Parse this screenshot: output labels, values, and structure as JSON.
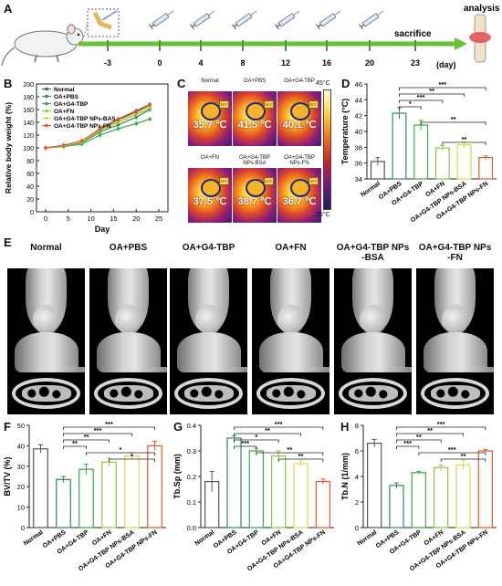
{
  "panels": {
    "A": "A",
    "B": "B",
    "C": "C",
    "D": "D",
    "E": "E",
    "F": "F",
    "G": "G",
    "H": "H"
  },
  "timeline": {
    "ticks": [
      "-3",
      "0",
      "4",
      "8",
      "12",
      "16",
      "20",
      "23"
    ],
    "unit": "(day)",
    "sacrifice": "sacrifice",
    "analysis": "analysis"
  },
  "colors": {
    "Normal": "#555555",
    "OA+PBS": "#2e8b57",
    "OA+G4-TBP": "#3aa84a",
    "OA+FN": "#8ec63f",
    "OA+G4-TBP NPs-BSA": "#d9d94a",
    "OA+G4-TBP NPs-FN": "#e2572d"
  },
  "chart_data": [
    {
      "panel": "B",
      "type": "line",
      "xlabel": "Day",
      "ylabel": "Relative body weight (%)",
      "xlim": [
        -2,
        27
      ],
      "ylim": [
        0,
        200
      ],
      "xticks": [
        "0",
        "5",
        "10",
        "15",
        "20",
        "25"
      ],
      "yticks": [
        "0",
        "20",
        "40",
        "60",
        "80",
        "100",
        "120",
        "140",
        "160",
        "180",
        "200"
      ],
      "x": [
        0,
        4,
        8,
        12,
        16,
        20,
        23
      ],
      "legend": [
        "Normal",
        "OA+PBS",
        "OA+G4-TBP",
        "OA+FN",
        "OA+G4-TBP NPs-BAS",
        "OA+G4-TBP NPs-FN"
      ],
      "series": [
        {
          "name": "Normal",
          "values": [
            100,
            104,
            110,
            130,
            145,
            158,
            168
          ]
        },
        {
          "name": "OA+PBS",
          "values": [
            100,
            103,
            108,
            125,
            136,
            148,
            160
          ]
        },
        {
          "name": "OA+G4-TBP",
          "values": [
            100,
            102,
            106,
            120,
            130,
            138,
            145
          ]
        },
        {
          "name": "OA+FN",
          "values": [
            100,
            103,
            109,
            127,
            140,
            152,
            162
          ]
        },
        {
          "name": "OA+G4-TBP NPs-BAS",
          "values": [
            100,
            104,
            110,
            128,
            142,
            155,
            165
          ]
        },
        {
          "name": "OA+G4-TBP NPs-FN",
          "values": [
            100,
            104,
            111,
            129,
            144,
            156,
            167
          ]
        }
      ]
    },
    {
      "panel": "D",
      "type": "bar",
      "ylabel": "Temperature (°C)",
      "ylim": [
        34,
        46
      ],
      "yticks": [
        "34",
        "36",
        "38",
        "40",
        "42",
        "44",
        "46"
      ],
      "categories": [
        "Normal",
        "OA+PBS",
        "OA+G4-TBP",
        "OA+FN",
        "OA+G4-TBP NPs-BSA",
        "OA+G4-TBP NPs-FN"
      ],
      "values": [
        36.2,
        42.3,
        40.8,
        37.9,
        38.3,
        36.7
      ],
      "errors": [
        0.5,
        0.7,
        0.6,
        0.3,
        0.4,
        0.2
      ],
      "sig": [
        "***",
        "**",
        "***",
        "*",
        "**",
        "**"
      ]
    },
    {
      "panel": "F",
      "type": "bar",
      "ylabel": "BV/TV (%)",
      "ylim": [
        0,
        50
      ],
      "yticks": [
        "0",
        "10",
        "20",
        "30",
        "40",
        "50"
      ],
      "categories": [
        "Normal",
        "OA+PBS",
        "OA+G4-TBP",
        "OA+FN",
        "OA+G4-TBP NPs-BSA",
        "OA+G4-TBP NPs-FN"
      ],
      "values": [
        38.5,
        23.5,
        28.5,
        32.0,
        35.0,
        40.0
      ],
      "errors": [
        2.0,
        1.5,
        2.5,
        2.0,
        1.8,
        2.2
      ],
      "sig": [
        "***",
        "***",
        "**",
        "**",
        "*",
        "*"
      ]
    },
    {
      "panel": "G",
      "type": "bar",
      "ylabel": "Tb.Sp (mm)",
      "ylim": [
        0.0,
        0.4
      ],
      "yticks": [
        "0.0",
        "0.1",
        "0.2",
        "0.3",
        "0.4"
      ],
      "categories": [
        "Normal",
        "OA+PBS",
        "OA+G4-TBP",
        "OA+FN",
        "OA+G4-TBP NPs-BSA",
        "OA+G4-TBP NPs-FN"
      ],
      "values": [
        0.18,
        0.35,
        0.3,
        0.28,
        0.25,
        0.18
      ],
      "errors": [
        0.04,
        0.01,
        0.01,
        0.02,
        0.01,
        0.01
      ],
      "sig": [
        "***",
        "**",
        "*",
        "***",
        "**",
        "**"
      ]
    },
    {
      "panel": "H",
      "type": "bar",
      "ylabel": "Tb.N (1/mm)",
      "ylim": [
        0,
        8
      ],
      "yticks": [
        "0",
        "2",
        "4",
        "6",
        "8"
      ],
      "categories": [
        "Normal",
        "OA+PBS",
        "OA+G4-TBP",
        "OA+FN",
        "OA+G4-TBP NPs-BSA",
        "OA+G4-TBP NPs-FN"
      ],
      "values": [
        6.6,
        3.3,
        4.3,
        4.7,
        4.9,
        6.0
      ],
      "errors": [
        0.3,
        0.2,
        0.1,
        0.2,
        0.4,
        0.1
      ],
      "sig": [
        "***",
        "**",
        "**",
        "***",
        "***",
        "**"
      ]
    }
  ],
  "thermal": {
    "scale_max": "45°C",
    "scale_min": "25°C",
    "tag": "EFF",
    "cells": [
      {
        "label": "Normal",
        "temp": "35.7 ℃"
      },
      {
        "label": "OA+PBS",
        "temp": "41.5 ℃"
      },
      {
        "label": "OA+G4-TBP",
        "temp": "40.1 ℃"
      },
      {
        "label": "OA+FN",
        "temp": "37.5 ℃"
      },
      {
        "label": "OA+G4-TBP NPs-BSA",
        "temp": "38.7 ℃"
      },
      {
        "label": "OA+G4-TBP NPs-FN",
        "temp": "36.7 ℃"
      }
    ]
  },
  "ct_labels": [
    "Normal",
    "OA+PBS",
    "OA+G4-TBP",
    "OA+FN",
    "OA+G4-TBP NPs -BSA",
    "OA+G4-TBP NPs -FN"
  ]
}
